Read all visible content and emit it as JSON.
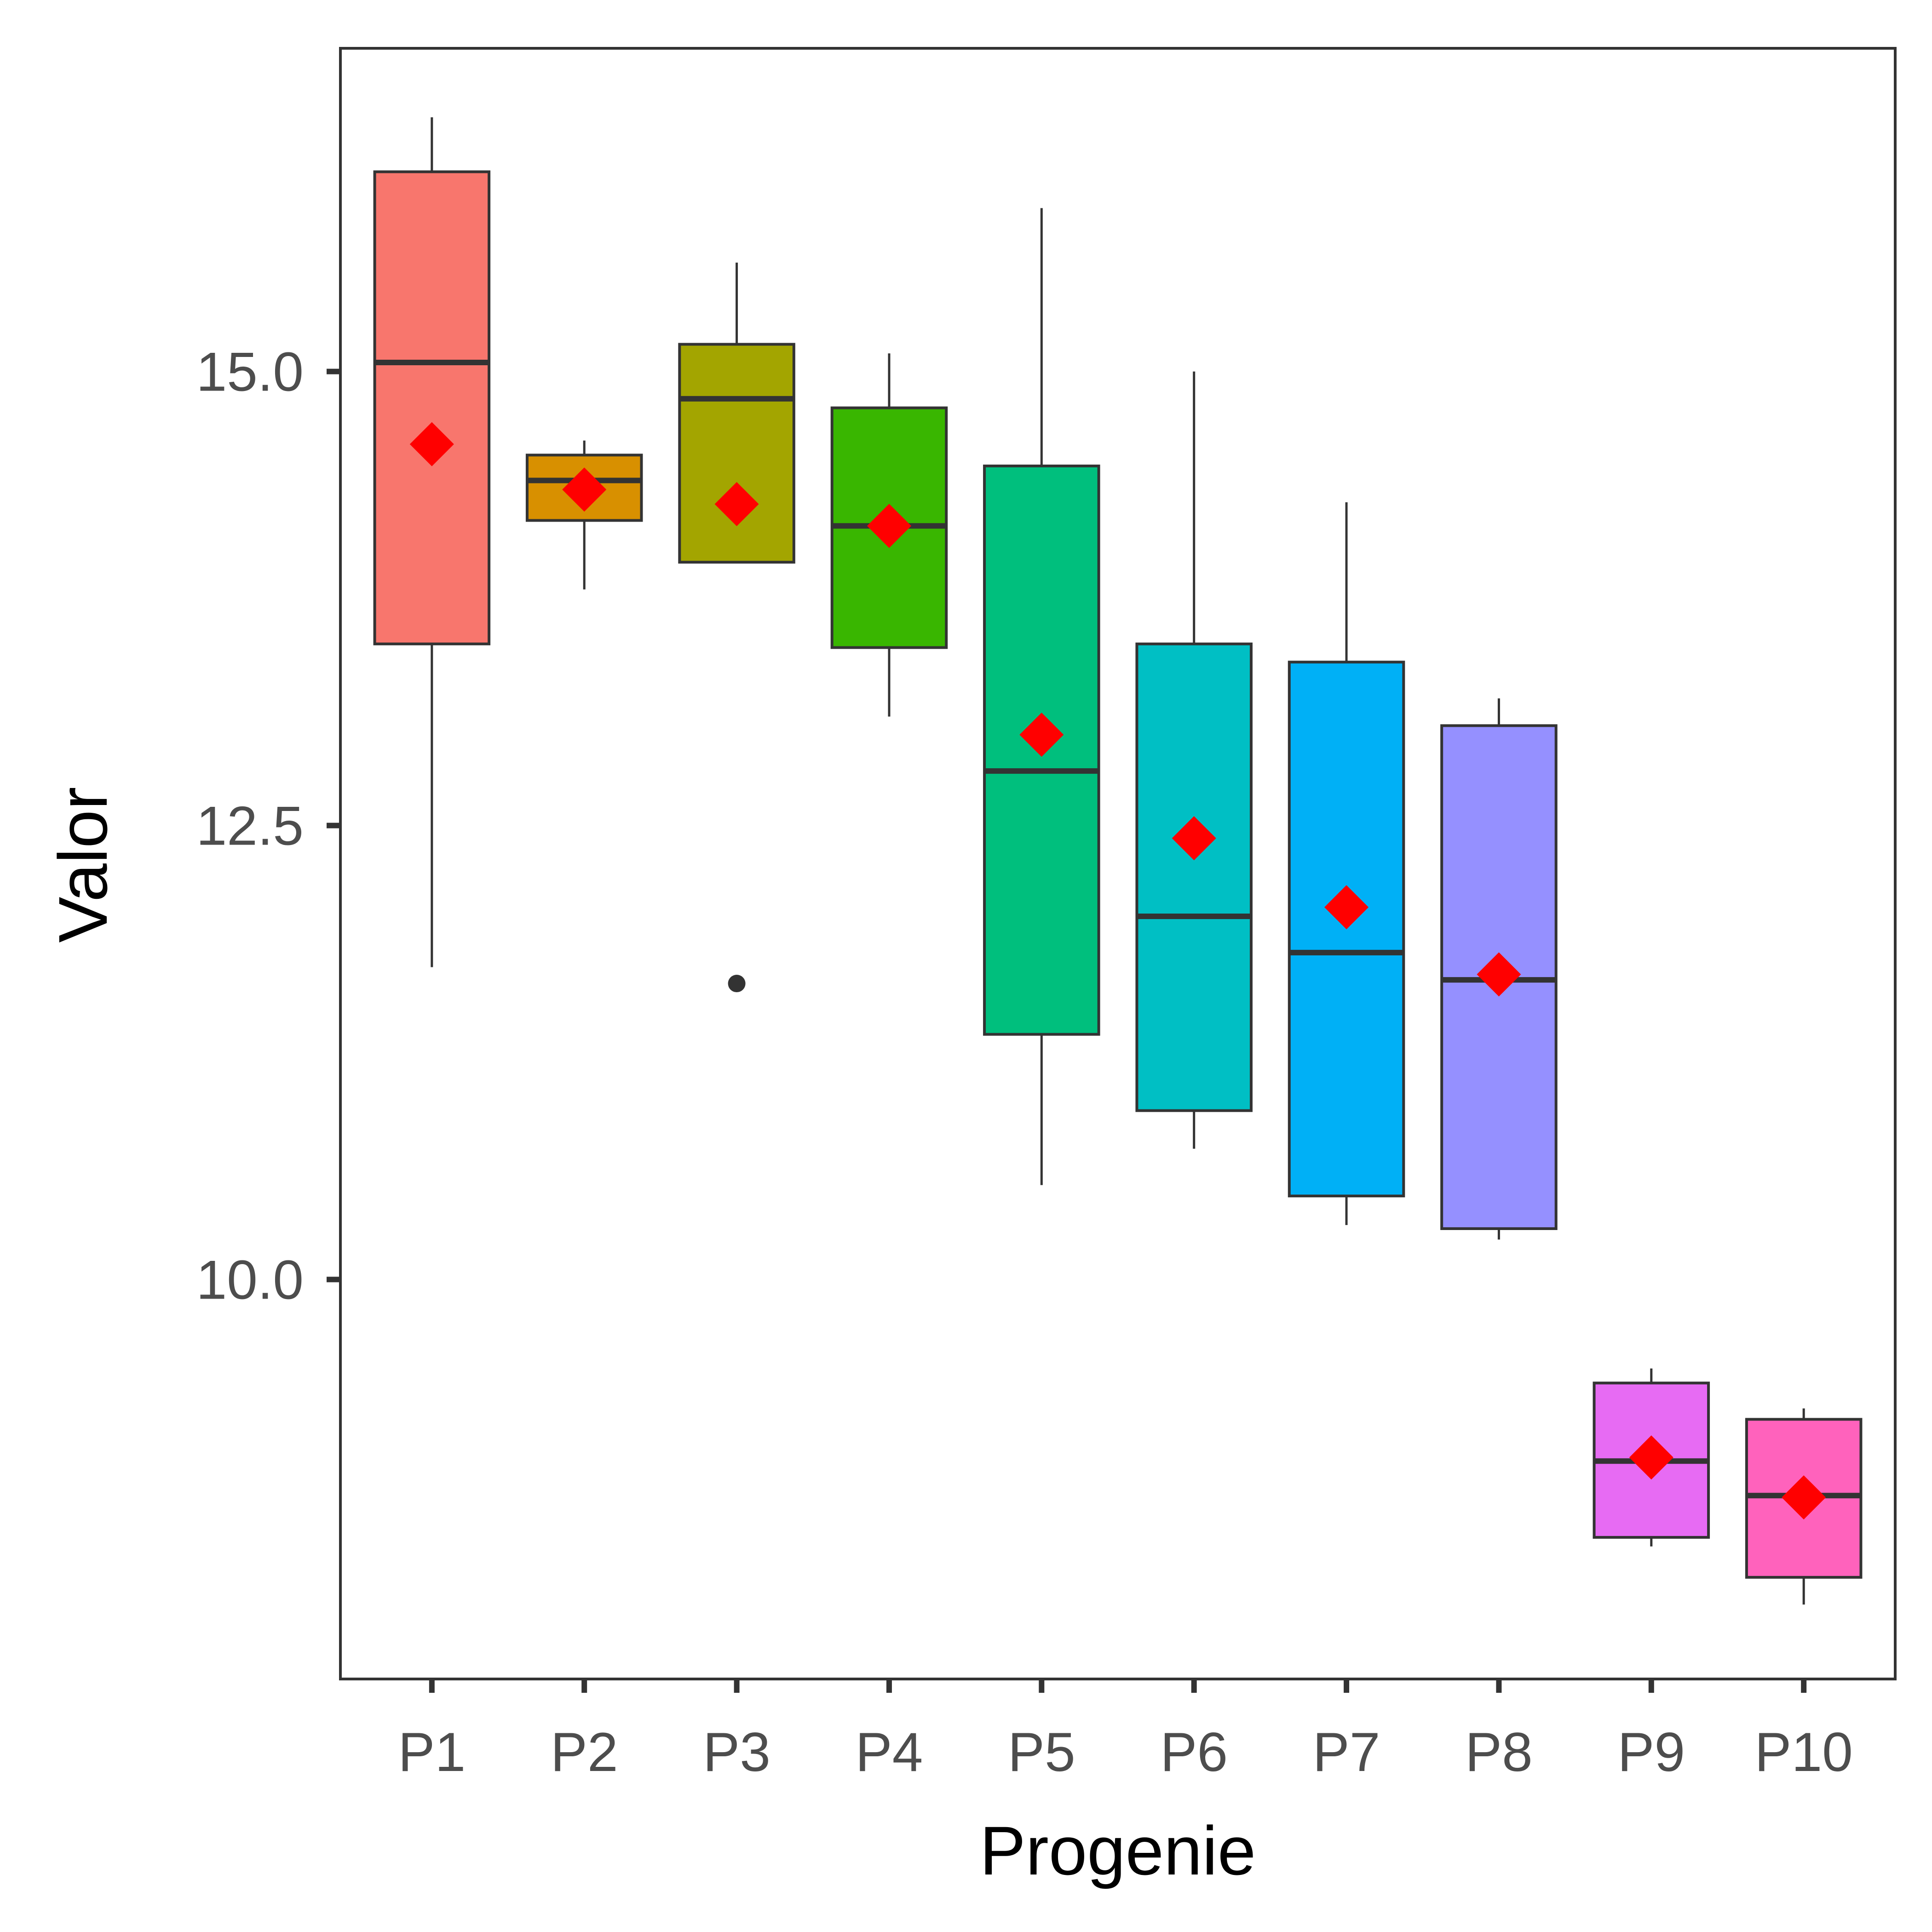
{
  "chart_data": {
    "type": "box",
    "title": "",
    "xlabel": "Progenie",
    "ylabel": "Valor",
    "ylim": [
      7.8,
      16.78
    ],
    "y_ticks": [
      {
        "value": 10.0,
        "label": "10.0"
      },
      {
        "value": 12.5,
        "label": "12.5"
      },
      {
        "value": 15.0,
        "label": "15.0"
      }
    ],
    "grid": false,
    "legend": "none",
    "mean_marker": {
      "shape": "diamond",
      "color": "#FF0000"
    },
    "series": [
      {
        "category": "P1",
        "color": "#F8766D",
        "whisker_low": 11.72,
        "q1": 13.5,
        "median": 15.05,
        "q3": 16.1,
        "whisker_high": 16.4,
        "mean": 14.6,
        "outliers": []
      },
      {
        "category": "P2",
        "color": "#D89000",
        "whisker_low": 13.8,
        "q1": 14.18,
        "median": 14.4,
        "q3": 14.54,
        "whisker_high": 14.62,
        "mean": 14.35,
        "outliers": []
      },
      {
        "category": "P3",
        "color": "#A3A500",
        "whisker_low": 13.95,
        "q1": 13.95,
        "median": 14.85,
        "q3": 15.15,
        "whisker_high": 15.6,
        "mean": 14.27,
        "outliers": [
          11.63
        ]
      },
      {
        "category": "P4",
        "color": "#39B600",
        "whisker_low": 13.1,
        "q1": 13.48,
        "median": 14.15,
        "q3": 14.8,
        "whisker_high": 15.1,
        "mean": 14.15,
        "outliers": []
      },
      {
        "category": "P5",
        "color": "#00BF7D",
        "whisker_low": 10.52,
        "q1": 11.35,
        "median": 12.8,
        "q3": 14.48,
        "whisker_high": 15.9,
        "mean": 13.0,
        "outliers": []
      },
      {
        "category": "P6",
        "color": "#00BFC4",
        "whisker_low": 10.72,
        "q1": 10.93,
        "median": 12.0,
        "q3": 13.5,
        "whisker_high": 15.0,
        "mean": 12.43,
        "outliers": []
      },
      {
        "category": "P7",
        "color": "#00B0F6",
        "whisker_low": 10.3,
        "q1": 10.46,
        "median": 11.8,
        "q3": 13.4,
        "whisker_high": 14.28,
        "mean": 12.05,
        "outliers": []
      },
      {
        "category": "P8",
        "color": "#9590FF",
        "whisker_low": 10.22,
        "q1": 10.28,
        "median": 11.65,
        "q3": 13.05,
        "whisker_high": 13.2,
        "mean": 11.68,
        "outliers": []
      },
      {
        "category": "P9",
        "color": "#E76BF3",
        "whisker_low": 8.53,
        "q1": 8.58,
        "median": 9.0,
        "q3": 9.43,
        "whisker_high": 9.51,
        "mean": 9.02,
        "outliers": []
      },
      {
        "category": "P10",
        "color": "#FF62BC",
        "whisker_low": 8.21,
        "q1": 8.36,
        "median": 8.81,
        "q3": 9.23,
        "whisker_high": 9.29,
        "mean": 8.8,
        "outliers": []
      }
    ]
  }
}
